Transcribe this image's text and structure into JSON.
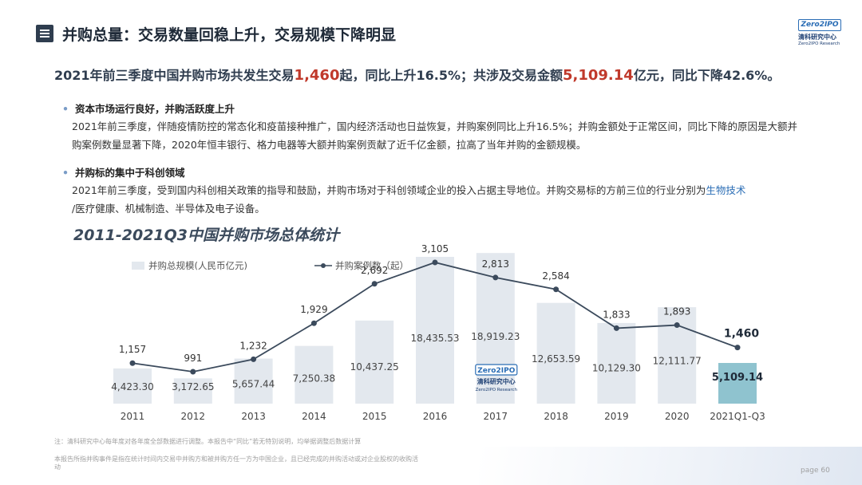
{
  "header": {
    "title": "并购总量：交易数量回稳上升，交易规模下降明显",
    "logo_text": "Zero2IPO",
    "logo_cn": "清科研究中心",
    "logo_en": "Zero2IPO Research"
  },
  "headline": {
    "part1": "2021年前三季度中国并购市场共发生交易",
    "count": "1,460",
    "part2": "起，同比上升16.5%；共涉及交易金额",
    "amount": "5,109.14",
    "part3": "亿元，同比下降42.6%。"
  },
  "bullets": [
    {
      "title": "资本市场运行良好，并购活跃度上升",
      "text": "2021年前三季度，伴随疫情防控的常态化和疫苗接种推广，国内经济活动也日益恢复，并购案例同比上升16.5%；并购金额处于正常区间，同比下降的原因是大额并购案例数量显著下降，2020年恒丰银行、格力电器等大额并购案例贡献了近千亿金额，拉高了当年并购的金额规模。"
    },
    {
      "title": "并购标的集中于科创领域",
      "text_before": "2021年前三季度，受到国内科创相关政策的指导和鼓励，并购市场对于科创领域企业的投入占据主导地位。并购交易标的方前三位的行业分别为",
      "text_accent": "生物技术",
      "text_line2": "/医疗健康、机械制造、半导体及电子设备。"
    }
  ],
  "chart_title": "2011-2021Q3中国并购市场总体统计",
  "chart_data": {
    "type": "bar",
    "categories": [
      "2011",
      "2012",
      "2013",
      "2014",
      "2015",
      "2016",
      "2017",
      "2018",
      "2019",
      "2020",
      "2021Q1-Q3"
    ],
    "series": [
      {
        "name": "并购总规模(人民币亿元)",
        "type": "bar",
        "values": [
          4423.3,
          3172.65,
          5657.44,
          7250.38,
          10437.25,
          18435.53,
          18919.23,
          12653.59,
          10129.3,
          12111.77,
          5109.14
        ],
        "labels": [
          "4,423.30",
          "3,172.65",
          "5,657.44",
          "7,250.38",
          "10,437.25",
          "18,435.53",
          "18,919.23",
          "12,653.59",
          "10,129.30",
          "12,111.77",
          "5,109.14"
        ]
      },
      {
        "name": "并购案例数（起）",
        "type": "line",
        "values": [
          1157,
          991,
          1232,
          1929,
          2692,
          3105,
          2813,
          2584,
          1833,
          1893,
          1460
        ],
        "labels": [
          "1,157",
          "991",
          "1,232",
          "1,929",
          "2,692",
          "3,105",
          "2,813",
          "2,584",
          "1,833",
          "1,893",
          "1,460"
        ]
      }
    ],
    "colors": {
      "bar": "#e3e8ee",
      "bar_highlight": "#8fc3cf",
      "line": "#3b4a5c"
    },
    "legend_position": "top-left",
    "watermark_text": "Zero2IPO",
    "watermark_cn": "清科研究中心",
    "watermark_en": "Zero2IPO Research"
  },
  "footnotes": [
    "注：清科研究中心每年度对各年度全部数据进行调整。本报告中“同比”若无特别说明，均举据调整后数据计算",
    "本报告所指并购事件是指在统计时间内交易中并购方和被并购方任一方为中国企业，且已经完成的并购活动或对企业股权的收购活",
    "动"
  ],
  "page": "page 60"
}
